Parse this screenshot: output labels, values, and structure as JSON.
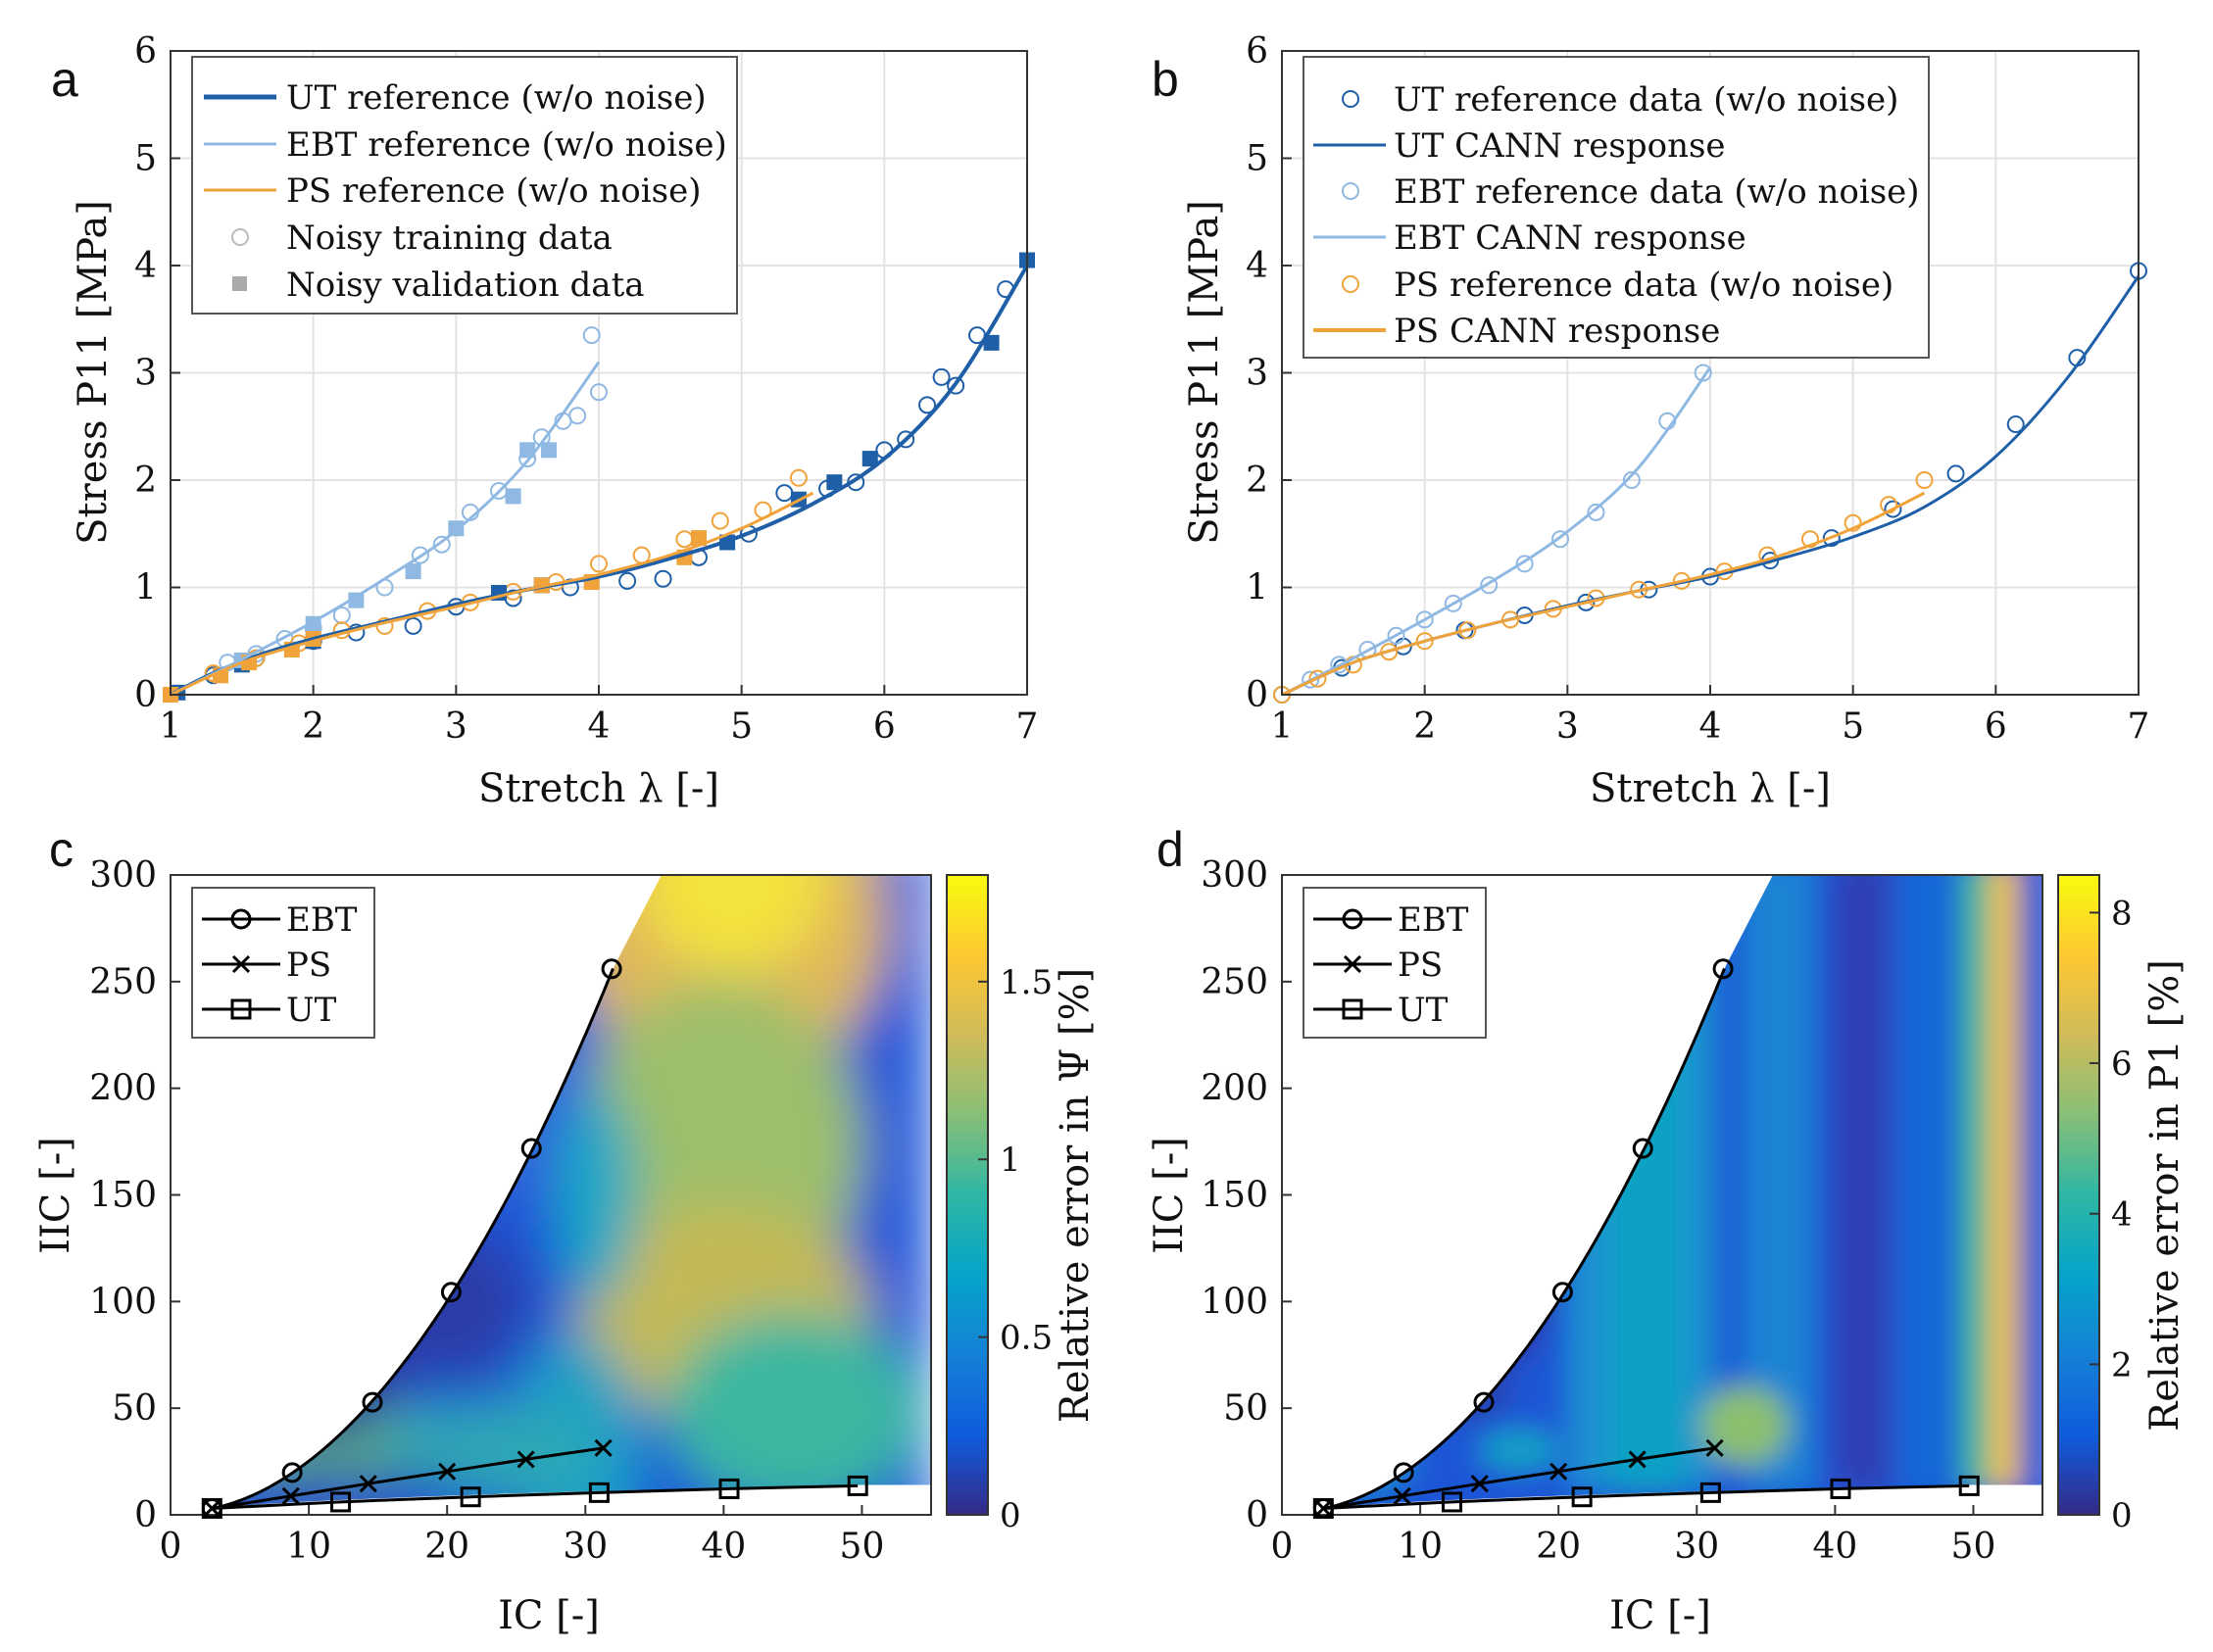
{
  "figure": {
    "panels": [
      {
        "letter": "a",
        "xlabel": "Stretch λ [-]",
        "ylabel": "Stress P11 [MPa]",
        "xticks": [
          "1",
          "2",
          "3",
          "4",
          "5",
          "6",
          "7"
        ],
        "yticks": [
          "0",
          "1",
          "2",
          "3",
          "4",
          "5",
          "6"
        ],
        "legend": [
          "UT reference (w/o noise)",
          "EBT reference (w/o noise)",
          "PS reference (w/o noise)",
          "Noisy training data",
          "Noisy validation data"
        ]
      },
      {
        "letter": "b",
        "xlabel": "Stretch λ [-]",
        "ylabel": "Stress P11 [MPa]",
        "xticks": [
          "1",
          "2",
          "3",
          "4",
          "5",
          "6",
          "7"
        ],
        "yticks": [
          "0",
          "1",
          "2",
          "3",
          "4",
          "5",
          "6"
        ],
        "legend": [
          "UT reference data (w/o noise)",
          "UT CANN response",
          "EBT reference data (w/o noise)",
          "EBT CANN response",
          "PS reference data (w/o noise)",
          "PS CANN response"
        ]
      },
      {
        "letter": "c",
        "xlabel": "IC [-]",
        "ylabel": "IIC [-]",
        "xticks": [
          "0",
          "10",
          "20",
          "30",
          "40",
          "50"
        ],
        "yticks": [
          "0",
          "50",
          "100",
          "150",
          "200",
          "250",
          "300"
        ],
        "legend": [
          "EBT",
          "PS",
          "UT"
        ],
        "colorbar": {
          "label": "Relative error in Ψ [%]",
          "ticks": [
            "0",
            "0.5",
            "1",
            "1.5"
          ],
          "range": [
            0,
            1.8
          ]
        }
      },
      {
        "letter": "d",
        "xlabel": "IC [-]",
        "ylabel": "IIC [-]",
        "xticks": [
          "0",
          "10",
          "20",
          "30",
          "40",
          "50"
        ],
        "yticks": [
          "0",
          "50",
          "100",
          "150",
          "200",
          "250",
          "300"
        ],
        "legend": [
          "EBT",
          "PS",
          "UT"
        ],
        "colorbar": {
          "label": "Relative error in P1 [%]",
          "ticks": [
            "0",
            "2",
            "4",
            "6",
            "8"
          ],
          "range": [
            0,
            8.5
          ]
        }
      }
    ]
  },
  "colors": {
    "ut": "#1f5fa8",
    "ebt": "#8fb9e3",
    "ps": "#f0a33a",
    "grid": "#e3e3e3",
    "parula": [
      "#352a87",
      "#0f5cdd",
      "#1481d6",
      "#06a4ca",
      "#2eb7a4",
      "#87bf77",
      "#d1bb59",
      "#fec832",
      "#f9fb0e"
    ]
  },
  "chart_data": [
    {
      "panel": "a",
      "type": "line",
      "xlim": [
        1,
        7
      ],
      "ylim": [
        0,
        6
      ],
      "series": [
        {
          "name": "UT reference (w/o noise)",
          "style": "line",
          "x": [
            1,
            1.3,
            1.6,
            2,
            2.5,
            3,
            3.5,
            4,
            4.5,
            5,
            5.5,
            6,
            6.5,
            7
          ],
          "y": [
            0,
            0.2,
            0.36,
            0.52,
            0.68,
            0.84,
            0.98,
            1.1,
            1.27,
            1.48,
            1.78,
            2.2,
            2.9,
            4.0
          ]
        },
        {
          "name": "EBT reference (w/o noise)",
          "style": "line",
          "x": [
            1,
            1.5,
            2,
            2.5,
            3,
            3.5,
            4
          ],
          "y": [
            0,
            0.33,
            0.68,
            1.08,
            1.53,
            2.18,
            3.1
          ]
        },
        {
          "name": "PS reference (w/o noise)",
          "style": "line",
          "x": [
            1,
            1.5,
            2,
            2.5,
            3,
            3.5,
            4,
            4.5,
            5,
            5.5
          ],
          "y": [
            0,
            0.3,
            0.5,
            0.67,
            0.82,
            0.98,
            1.12,
            1.3,
            1.55,
            1.88
          ]
        },
        {
          "name": "UT noisy training",
          "style": "circle",
          "x": [
            1.3,
            1.6,
            2.0,
            2.3,
            2.7,
            3.0,
            3.4,
            3.8,
            4.2,
            4.45,
            4.7,
            5.05,
            5.3,
            5.6,
            5.8,
            6.0,
            6.15,
            6.3,
            6.4,
            6.5,
            6.65,
            6.85
          ],
          "y": [
            0.18,
            0.34,
            0.5,
            0.58,
            0.64,
            0.82,
            0.9,
            1.0,
            1.06,
            1.08,
            1.28,
            1.5,
            1.88,
            1.92,
            1.98,
            2.28,
            2.38,
            2.7,
            2.96,
            2.88,
            3.35,
            3.78
          ]
        },
        {
          "name": "EBT noisy training",
          "style": "circle",
          "x": [
            1.4,
            1.6,
            1.8,
            2.0,
            2.2,
            2.5,
            2.75,
            2.9,
            3.1,
            3.3,
            3.5,
            3.6,
            3.75,
            3.85,
            3.95,
            4.0
          ],
          "y": [
            0.3,
            0.38,
            0.52,
            0.62,
            0.74,
            1.0,
            1.3,
            1.4,
            1.7,
            1.9,
            2.2,
            2.4,
            2.55,
            2.6,
            3.35,
            2.82
          ]
        },
        {
          "name": "PS noisy training",
          "style": "circle",
          "x": [
            1.3,
            1.6,
            1.9,
            2.2,
            2.5,
            2.8,
            3.1,
            3.4,
            3.7,
            4.0,
            4.3,
            4.6,
            4.85,
            5.15,
            5.4
          ],
          "y": [
            0.2,
            0.34,
            0.48,
            0.6,
            0.64,
            0.78,
            0.86,
            0.96,
            1.05,
            1.22,
            1.3,
            1.45,
            1.62,
            1.72,
            2.02
          ]
        },
        {
          "name": "UT noisy validation",
          "style": "square",
          "x": [
            1.05,
            1.5,
            2.0,
            3.3,
            3.6,
            4.9,
            5.4,
            5.65,
            5.9,
            6.75,
            7.0
          ],
          "y": [
            0.02,
            0.28,
            0.5,
            0.95,
            1.02,
            1.42,
            1.82,
            1.98,
            2.2,
            3.28,
            4.05
          ]
        },
        {
          "name": "EBT noisy validation",
          "style": "square",
          "x": [
            1.5,
            2.0,
            2.3,
            2.7,
            3.0,
            3.4,
            3.5,
            3.65
          ],
          "y": [
            0.32,
            0.66,
            0.88,
            1.15,
            1.55,
            1.85,
            2.28,
            2.28
          ]
        },
        {
          "name": "PS noisy validation",
          "style": "square",
          "x": [
            1.0,
            1.35,
            1.55,
            1.85,
            2.0,
            3.6,
            3.95,
            4.6,
            4.7
          ],
          "y": [
            0.0,
            0.18,
            0.3,
            0.42,
            0.52,
            1.02,
            1.05,
            1.28,
            1.46
          ]
        }
      ]
    },
    {
      "panel": "b",
      "type": "line",
      "xlim": [
        1,
        7
      ],
      "ylim": [
        0,
        6
      ],
      "series": [
        {
          "name": "UT reference data (w/o noise)",
          "style": "circle",
          "x": [
            1,
            1.42,
            1.85,
            2.28,
            2.7,
            3.13,
            3.57,
            4.0,
            4.42,
            4.85,
            5.28,
            5.72,
            6.14,
            6.57,
            7.0
          ],
          "y": [
            0,
            0.25,
            0.45,
            0.6,
            0.74,
            0.86,
            0.98,
            1.1,
            1.25,
            1.46,
            1.73,
            2.06,
            2.52,
            3.14,
            3.95
          ]
        },
        {
          "name": "UT CANN response",
          "style": "line",
          "x": [
            1,
            1.5,
            2,
            2.5,
            3,
            3.5,
            4,
            4.5,
            5,
            5.5,
            6,
            6.5,
            7
          ],
          "y": [
            0,
            0.3,
            0.5,
            0.67,
            0.83,
            0.97,
            1.1,
            1.27,
            1.47,
            1.75,
            2.22,
            2.95,
            3.9
          ]
        },
        {
          "name": "EBT reference data (w/o noise)",
          "style": "circle",
          "x": [
            1,
            1.2,
            1.4,
            1.6,
            1.8,
            2.0,
            2.2,
            2.45,
            2.7,
            2.95,
            3.2,
            3.45,
            3.7,
            3.95
          ],
          "y": [
            0,
            0.14,
            0.28,
            0.42,
            0.55,
            0.7,
            0.85,
            1.02,
            1.22,
            1.45,
            1.7,
            2.0,
            2.55,
            3.0
          ]
        },
        {
          "name": "EBT CANN response",
          "style": "line",
          "x": [
            1,
            1.5,
            2,
            2.5,
            3,
            3.5,
            4
          ],
          "y": [
            0,
            0.34,
            0.7,
            1.08,
            1.52,
            2.12,
            3.05
          ]
        },
        {
          "name": "PS reference data (w/o noise)",
          "style": "circle",
          "x": [
            1,
            1.25,
            1.5,
            1.75,
            2.0,
            2.3,
            2.6,
            2.9,
            3.2,
            3.5,
            3.8,
            4.1,
            4.4,
            4.7,
            5.0,
            5.25,
            5.5
          ],
          "y": [
            0,
            0.15,
            0.28,
            0.4,
            0.5,
            0.6,
            0.7,
            0.8,
            0.9,
            0.98,
            1.06,
            1.15,
            1.3,
            1.45,
            1.6,
            1.77,
            2.0
          ]
        },
        {
          "name": "PS CANN response",
          "style": "line",
          "x": [
            1,
            1.5,
            2,
            2.5,
            3,
            3.5,
            4,
            4.5,
            5,
            5.5
          ],
          "y": [
            0,
            0.3,
            0.5,
            0.67,
            0.82,
            0.97,
            1.12,
            1.3,
            1.55,
            1.88
          ]
        }
      ]
    },
    {
      "panel": "c",
      "type": "heatmap",
      "xlim": [
        0,
        55
      ],
      "ylim": [
        0,
        300
      ],
      "series": [
        {
          "name": "EBT",
          "marker": "circle",
          "x": [
            3,
            8.8,
            14.6,
            20.3,
            26.1,
            31.9
          ],
          "y": [
            3,
            19.8,
            52.8,
            104.4,
            171.8,
            256
          ]
        },
        {
          "name": "PS",
          "marker": "x",
          "x": [
            3,
            8.7,
            14.3,
            20,
            25.7,
            31.3
          ],
          "y": [
            3,
            8.8,
            14.6,
            20.3,
            26,
            31.3
          ]
        },
        {
          "name": "UT",
          "marker": "square",
          "x": [
            3,
            12.3,
            21.7,
            31,
            40.4,
            49.7
          ],
          "y": [
            3,
            6,
            8.4,
            10.4,
            12.2,
            13.6
          ]
        }
      ],
      "color_range": [
        0,
        1.8
      ]
    },
    {
      "panel": "d",
      "type": "heatmap",
      "xlim": [
        0,
        55
      ],
      "ylim": [
        0,
        300
      ],
      "series": [
        {
          "name": "EBT",
          "marker": "circle",
          "x": [
            3,
            8.8,
            14.6,
            20.3,
            26.1,
            31.9
          ],
          "y": [
            3,
            19.8,
            52.8,
            104.4,
            171.8,
            256
          ]
        },
        {
          "name": "PS",
          "marker": "x",
          "x": [
            3,
            8.7,
            14.3,
            20,
            25.7,
            31.3
          ],
          "y": [
            3,
            8.8,
            14.6,
            20.3,
            26,
            31.3
          ]
        },
        {
          "name": "UT",
          "marker": "square",
          "x": [
            3,
            12.3,
            21.7,
            31,
            40.4,
            49.7
          ],
          "y": [
            3,
            6,
            8.4,
            10.4,
            12.2,
            13.6
          ]
        }
      ],
      "color_range": [
        0,
        8.5
      ]
    }
  ]
}
